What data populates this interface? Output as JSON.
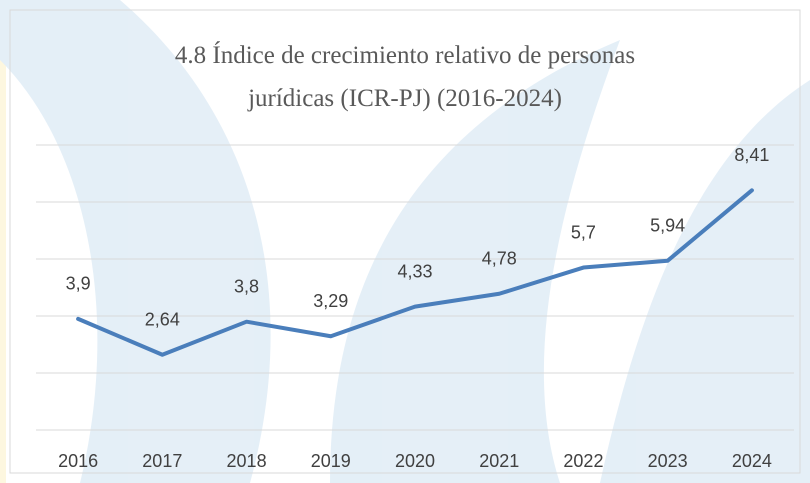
{
  "chart_data": {
    "type": "line",
    "title": "4.8 Índice de crecimiento relativo de personas jurídicas (ICR-PJ) (2016-2024)",
    "categories": [
      "2016",
      "2017",
      "2018",
      "2019",
      "2020",
      "2021",
      "2022",
      "2023",
      "2024"
    ],
    "values": [
      3.9,
      2.64,
      3.8,
      3.29,
      4.33,
      4.78,
      5.7,
      5.94,
      8.41
    ],
    "value_labels": [
      "3,9",
      "2,64",
      "3,8",
      "3,29",
      "4,33",
      "4,78",
      "5,7",
      "5,94",
      "8,41"
    ],
    "color": "#4a7ebb",
    "ylim": [
      0,
      10
    ],
    "yticks": [
      0,
      2,
      4,
      6,
      8,
      10
    ],
    "grid": true
  }
}
